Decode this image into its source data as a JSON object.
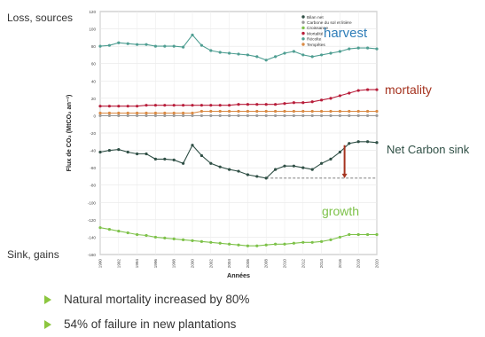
{
  "side_labels": {
    "top": "Loss, sources",
    "bottom": "Sink, gains"
  },
  "bullets": [
    "Natural mortality increased by 80%",
    "54% of failure in new plantations"
  ],
  "colors": {
    "bilan": "#2f4f45",
    "carbone": "#9a9a9a",
    "croissance": "#7ec24a",
    "mortalite": "#b81d3a",
    "recolte": "#4f9e92",
    "tempetes": "#d98a45",
    "annot_blue": "#2e7db8",
    "annot_red": "#a5331f",
    "annot_green": "#7ec24a",
    "arrow": "#a5331f",
    "bullet": "#8cc63f"
  },
  "chart_data": {
    "type": "line",
    "ylabel": "Flux de CO₂ (MtCO₂ an⁻¹)",
    "xlabel": "Années",
    "ylim": [
      -160,
      120
    ],
    "xlim": [
      1990,
      2020
    ],
    "yticks": [
      120,
      100,
      80,
      60,
      40,
      20,
      0,
      -20,
      -40,
      -60,
      -80,
      -100,
      -120,
      -140,
      -160
    ],
    "xticks": [
      1990,
      1992,
      1994,
      1996,
      1998,
      2000,
      2002,
      2004,
      2006,
      2008,
      2010,
      2012,
      2014,
      2016,
      2018,
      2020
    ],
    "grid": true,
    "legend_position": "top-right",
    "x": [
      1990,
      1991,
      1992,
      1993,
      1994,
      1995,
      1996,
      1997,
      1998,
      1999,
      2000,
      2001,
      2002,
      2003,
      2004,
      2005,
      2006,
      2007,
      2008,
      2009,
      2010,
      2011,
      2012,
      2013,
      2014,
      2015,
      2016,
      2017,
      2018,
      2019,
      2020
    ],
    "series": [
      {
        "name": "Bilan net",
        "color_key": "bilan",
        "values": [
          -42,
          -40,
          -39,
          -42,
          -44,
          -44,
          -50,
          -50,
          -51,
          -55,
          -34,
          -46,
          -55,
          -59,
          -62,
          -64,
          -68,
          -70,
          -72,
          -62,
          -58,
          -58,
          -60,
          -62,
          -55,
          -50,
          -42,
          -32,
          -30,
          -30,
          -31
        ]
      },
      {
        "name": "Carbone du sol et litière",
        "color_key": "carbone",
        "values": [
          0,
          0,
          0,
          0,
          0,
          0,
          0,
          0,
          0,
          0,
          0,
          0,
          0,
          0,
          0,
          0,
          0,
          0,
          0,
          0,
          0,
          0,
          0,
          0,
          0,
          0,
          0,
          0,
          0,
          0,
          0
        ]
      },
      {
        "name": "Croissance",
        "color_key": "croissance",
        "values": [
          -129,
          -131,
          -133,
          -135,
          -137,
          -138,
          -140,
          -141,
          -142,
          -143,
          -144,
          -145,
          -146,
          -147,
          -148,
          -149,
          -150,
          -150,
          -149,
          -148,
          -148,
          -147,
          -146,
          -146,
          -145,
          -143,
          -140,
          -137,
          -137,
          -137,
          -137
        ]
      },
      {
        "name": "Mortalité",
        "color_key": "mortalite",
        "values": [
          11,
          11,
          11,
          11,
          11,
          12,
          12,
          12,
          12,
          12,
          12,
          12,
          12,
          12,
          12,
          13,
          13,
          13,
          13,
          13,
          14,
          15,
          15,
          16,
          18,
          20,
          23,
          26,
          29,
          30,
          30
        ]
      },
      {
        "name": "Récolte",
        "color_key": "recolte",
        "values": [
          80,
          81,
          84,
          83,
          82,
          82,
          80,
          80,
          80,
          79,
          93,
          81,
          75,
          73,
          72,
          71,
          70,
          68,
          64,
          68,
          72,
          74,
          70,
          68,
          70,
          72,
          74,
          77,
          78,
          78,
          77
        ]
      },
      {
        "name": "Tempêtes",
        "color_key": "tempetes",
        "values": [
          3,
          3,
          3,
          3,
          3,
          3,
          3,
          3,
          3,
          3,
          3,
          5,
          5,
          5,
          5,
          5,
          5,
          5,
          5,
          5,
          5,
          5,
          5,
          5,
          5,
          5,
          5,
          5,
          5,
          5,
          5
        ]
      }
    ],
    "reference_line": {
      "y": -72,
      "from_x": 2008,
      "to_x": 2020,
      "style": "dashed"
    },
    "arrow": {
      "x": 2016.5,
      "from_y": -34,
      "to_y": -72
    },
    "annotations": [
      {
        "text": "harvest",
        "color_key": "annot_blue"
      },
      {
        "text": "mortality",
        "color_key": "annot_red"
      },
      {
        "text": "Net Carbon sink",
        "color_key": "bilan"
      },
      {
        "text": "growth",
        "color_key": "annot_green"
      }
    ]
  }
}
